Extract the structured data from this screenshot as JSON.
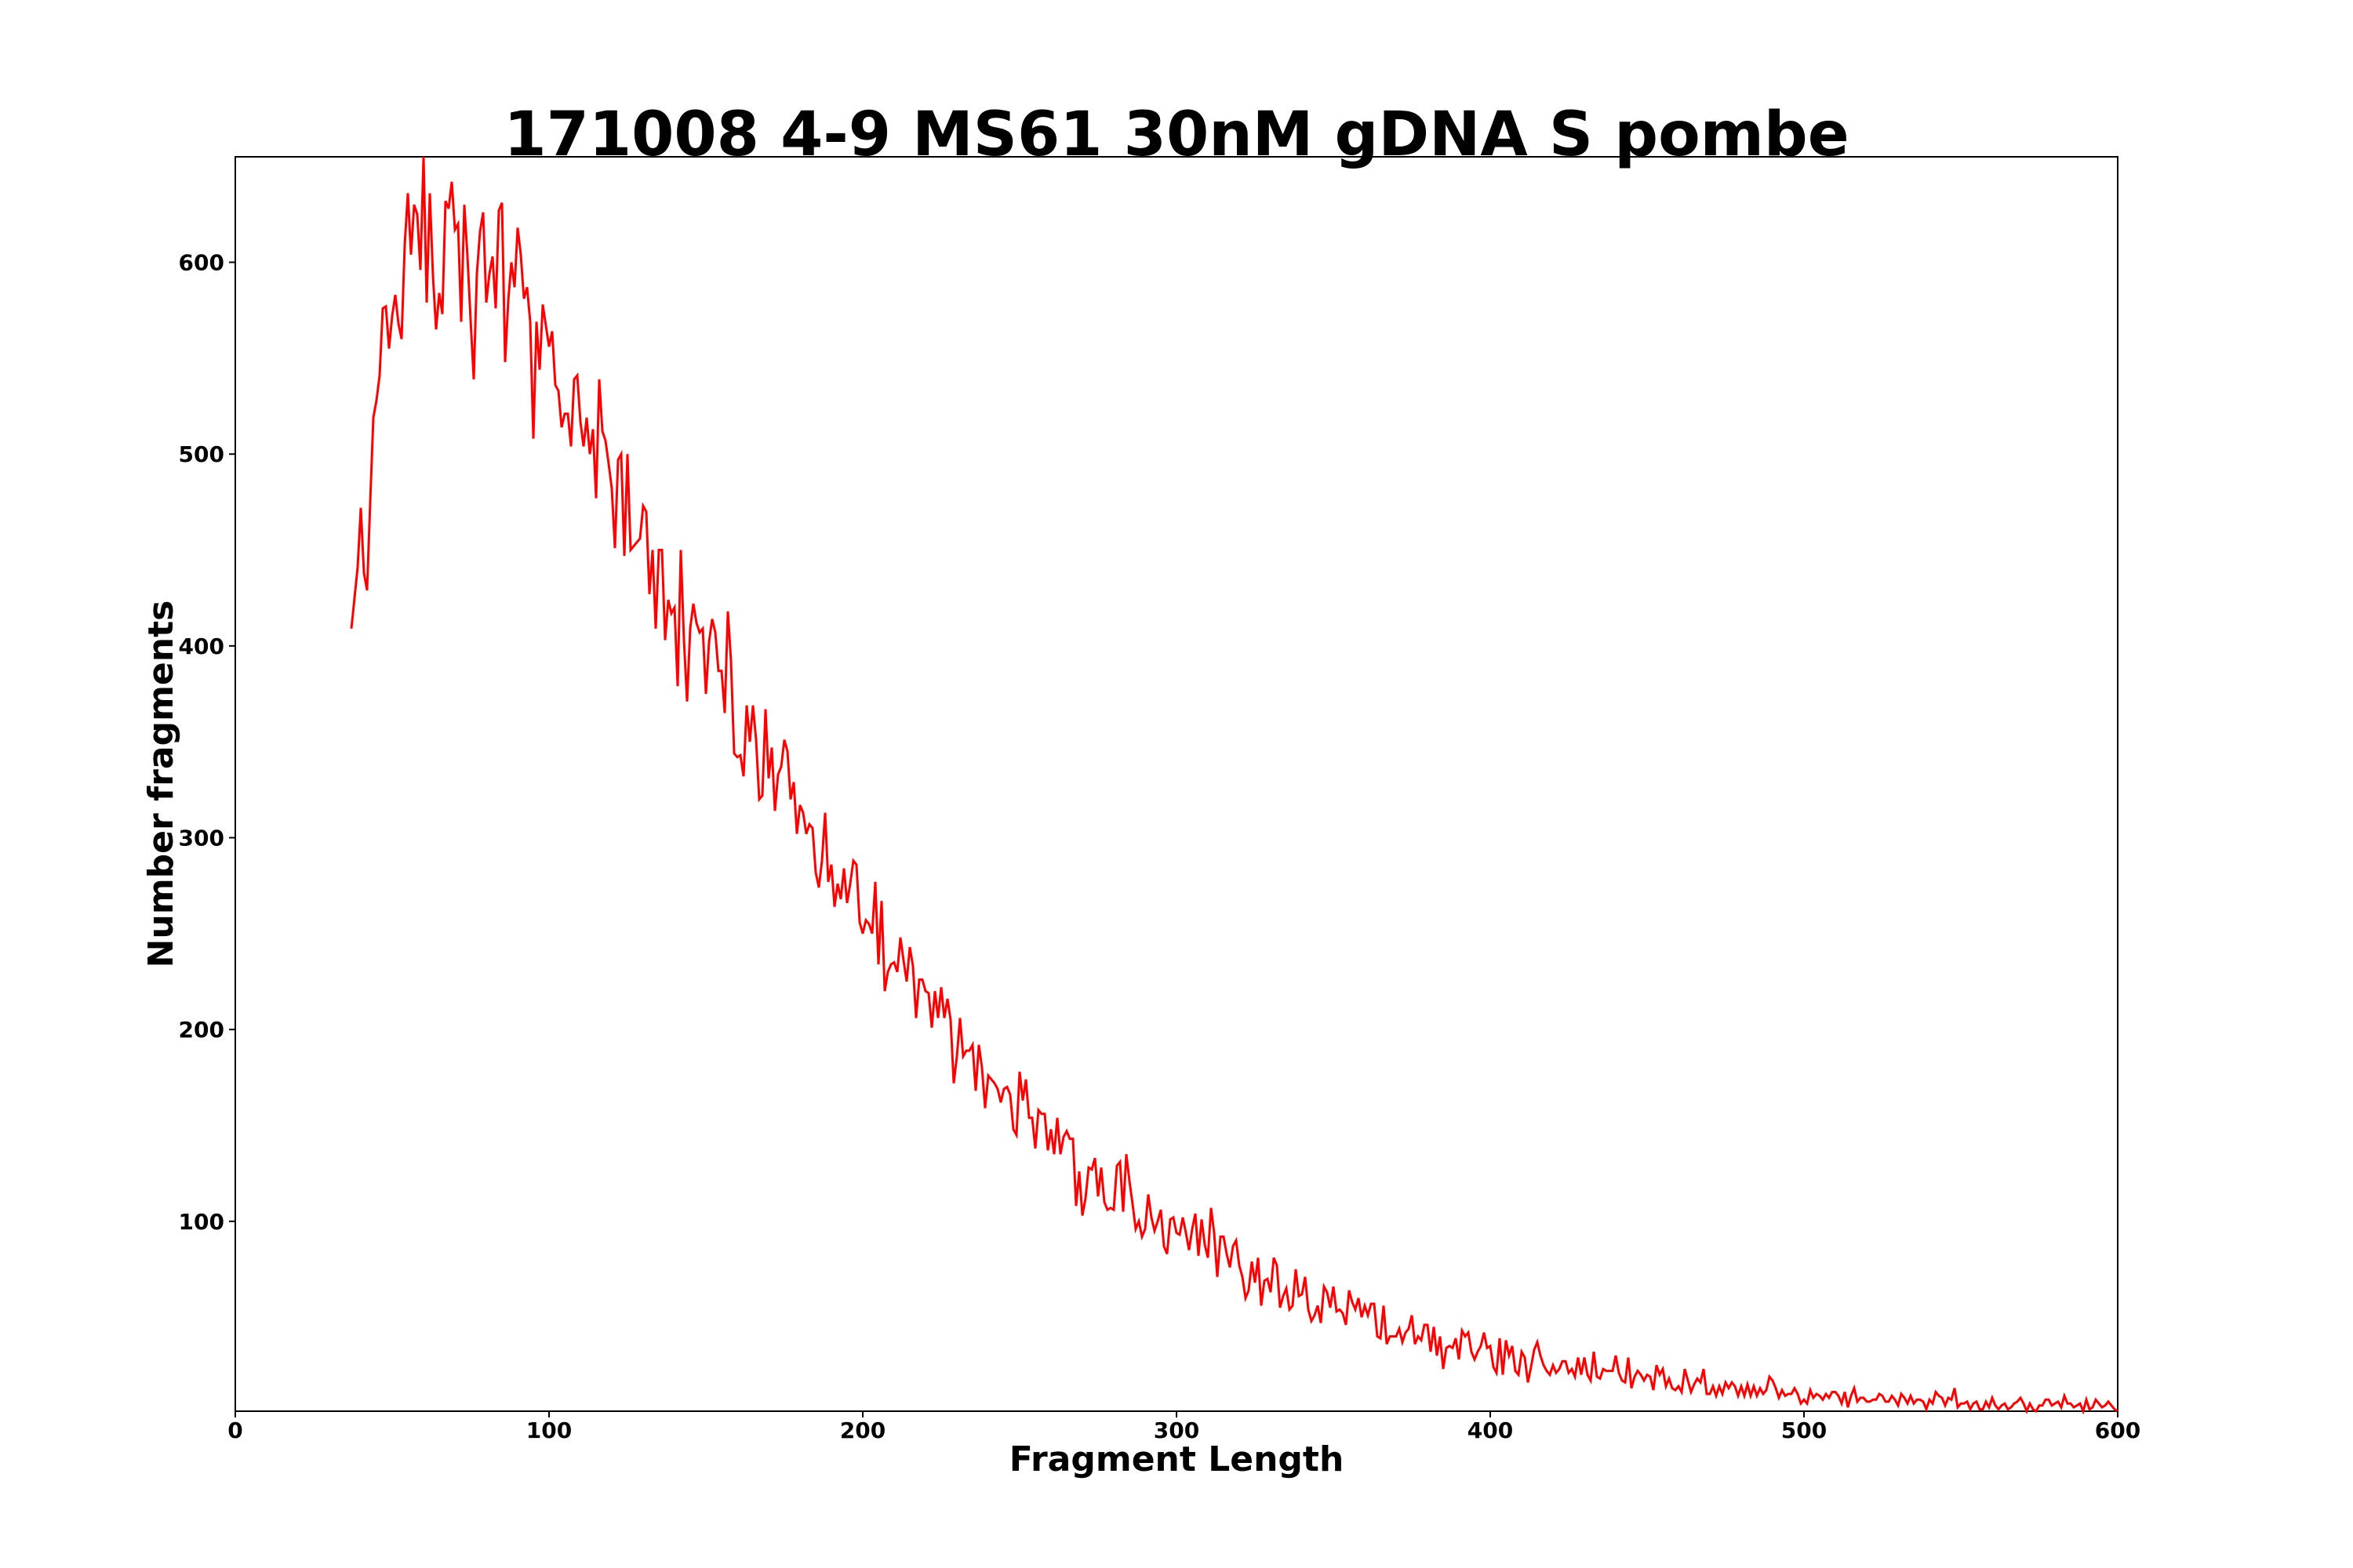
{
  "chart_data": {
    "type": "line",
    "title": "171008 4-9 MS61 30nM gDNA S pombe",
    "xlabel": "Fragment Length",
    "ylabel": "Number fragments",
    "xlim": [
      0,
      600
    ],
    "ylim": [
      1,
      655
    ],
    "xticks": [
      0,
      100,
      200,
      300,
      400,
      500,
      600
    ],
    "xtick_labels": [
      "0",
      "100",
      "200",
      "300",
      "400",
      "500",
      "600"
    ],
    "yticks": [
      100,
      200,
      300,
      400,
      500,
      600
    ],
    "ytick_labels": [
      "100",
      "200",
      "300",
      "400",
      "500",
      "600"
    ],
    "grid": false,
    "legend": null,
    "series": [
      {
        "name": "fragments",
        "color": "#ff0000",
        "x_start": 37,
        "x_step": 1,
        "values": [
          409,
          425,
          441,
          472,
          438,
          429,
          475,
          519,
          528,
          541,
          576,
          577,
          555,
          572,
          583,
          568,
          560,
          609,
          636,
          604,
          630,
          625,
          596,
          655,
          579,
          636,
          593,
          565,
          584,
          573,
          632,
          628,
          642,
          617,
          620,
          569,
          630,
          603,
          570,
          539,
          594,
          616,
          626,
          579,
          594,
          603,
          576,
          627,
          631,
          548,
          580,
          600,
          587,
          618,
          604,
          581,
          587,
          569,
          508,
          569,
          544,
          578,
          567,
          556,
          564,
          536,
          533,
          514,
          521,
          521,
          504,
          539,
          541,
          517,
          504,
          519,
          500,
          513,
          477,
          539,
          512,
          507,
          495,
          482,
          451,
          497,
          500,
          447,
          500,
          450,
          452,
          454,
          456,
          473,
          470,
          427,
          450,
          409,
          450,
          450,
          403,
          424,
          417,
          420,
          379,
          450,
          403,
          371,
          409,
          422,
          412,
          407,
          409,
          375,
          402,
          414,
          407,
          387,
          387,
          365,
          418,
          392,
          344,
          342,
          343,
          332,
          369,
          350,
          369,
          351,
          320,
          322,
          367,
          331,
          347,
          314,
          333,
          337,
          351,
          345,
          320,
          329,
          302,
          317,
          313,
          302,
          307,
          305,
          282,
          274,
          288,
          313,
          277,
          286,
          264,
          276,
          268,
          284,
          266,
          276,
          288,
          286,
          256,
          250,
          257,
          255,
          250,
          277,
          234,
          267,
          220,
          230,
          234,
          235,
          230,
          248,
          236,
          225,
          243,
          233,
          206,
          226,
          226,
          220,
          219,
          201,
          220,
          206,
          222,
          206,
          216,
          205,
          172,
          186,
          206,
          186,
          189,
          189,
          192,
          168,
          192,
          180,
          159,
          176,
          174,
          172,
          169,
          162,
          169,
          170,
          166,
          148,
          145,
          178,
          163,
          174,
          154,
          154,
          138,
          158,
          156,
          156,
          137,
          148,
          135,
          154,
          135,
          144,
          147,
          143,
          143,
          108,
          126,
          103,
          112,
          128,
          127,
          133,
          113,
          128,
          110,
          106,
          107,
          106,
          129,
          131,
          105,
          135,
          121,
          109,
          96,
          100,
          92,
          96,
          114,
          102,
          95,
          100,
          106,
          87,
          83,
          101,
          102,
          94,
          93,
          102,
          94,
          85,
          96,
          104,
          82,
          101,
          88,
          81,
          107,
          94,
          71,
          92,
          92,
          83,
          76,
          87,
          90,
          77,
          71,
          60,
          64,
          79,
          68,
          81,
          56,
          69,
          70,
          63,
          81,
          77,
          55,
          61,
          65,
          54,
          56,
          75,
          61,
          62,
          71,
          54,
          48,
          51,
          56,
          47,
          66,
          63,
          55,
          66,
          53,
          54,
          52,
          46,
          64,
          58,
          54,
          60,
          50,
          56,
          51,
          57,
          57,
          40,
          39,
          56,
          36,
          40,
          40,
          40,
          44,
          37,
          42,
          44,
          51,
          36,
          40,
          38,
          46,
          46,
          32,
          45,
          30,
          40,
          23,
          34,
          35,
          34,
          39,
          28,
          43,
          40,
          42,
          32,
          28,
          32,
          35,
          42,
          34,
          35,
          24,
          21,
          39,
          20,
          38,
          30,
          35,
          22,
          20,
          32,
          29,
          16,
          24,
          33,
          37,
          30,
          25,
          22,
          20,
          25,
          21,
          23,
          27,
          27,
          21,
          23,
          19,
          29,
          20,
          29,
          20,
          17,
          32,
          19,
          18,
          23,
          22,
          22,
          22,
          30,
          21,
          17,
          16,
          29,
          13,
          19,
          22,
          20,
          17,
          20,
          19,
          12,
          25,
          20,
          23,
          14,
          18,
          13,
          12,
          14,
          11,
          23,
          17,
          11,
          15,
          18,
          16,
          23,
          10,
          10,
          14,
          9,
          14,
          10,
          16,
          13,
          16,
          14,
          9,
          14,
          9,
          15,
          9,
          14,
          9,
          13,
          10,
          12,
          19,
          17,
          13,
          8,
          12,
          9,
          10,
          10,
          13,
          10,
          5,
          7,
          5,
          12,
          8,
          10,
          9,
          7,
          10,
          8,
          11,
          11,
          9,
          5,
          11,
          3,
          9,
          13,
          6,
          8,
          8,
          6,
          6,
          7,
          7,
          10,
          9,
          6,
          6,
          9,
          7,
          4,
          10,
          8,
          5,
          9,
          5,
          7,
          7,
          6,
          2,
          7,
          5,
          11,
          9,
          8,
          4,
          8,
          7,
          13,
          3,
          5,
          5,
          6,
          2,
          5,
          6,
          2,
          2,
          6,
          3,
          8,
          4,
          2,
          4,
          5,
          2,
          3,
          5,
          6,
          8,
          5,
          1,
          5,
          2,
          1,
          4,
          4,
          7,
          7,
          4,
          5,
          6,
          3,
          9,
          5,
          5,
          3,
          4,
          5,
          1,
          7,
          2,
          3,
          7,
          5,
          3,
          4,
          6,
          4,
          2,
          1
        ]
      }
    ]
  }
}
